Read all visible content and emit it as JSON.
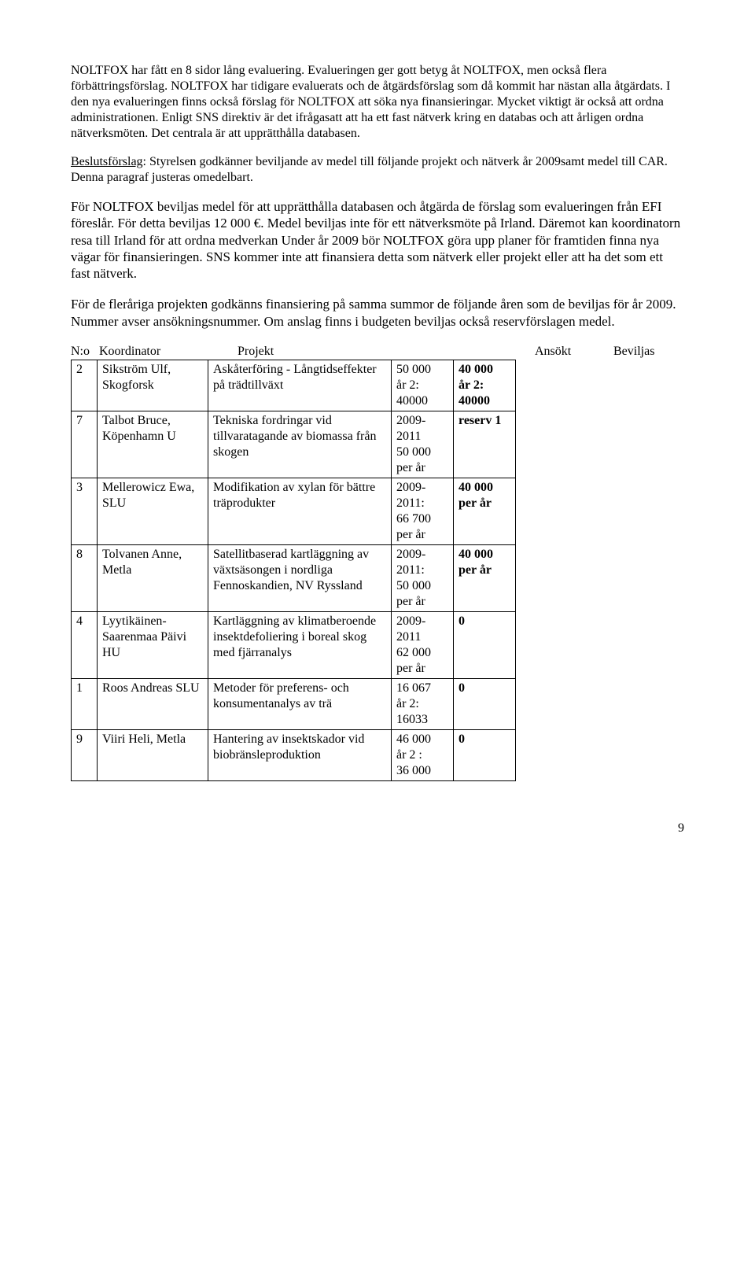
{
  "para1": "NOLTFOX har fått en 8 sidor lång evaluering. Evalueringen ger gott betyg åt NOLTFOX, men också flera förbättringsförslag. NOLTFOX har tidigare evaluerats och de åtgärdsförslag som då kommit har nästan alla åtgärdats. I den nya evalueringen finns också förslag för NOLTFOX att söka nya finansieringar. Mycket viktigt är också att ordna administrationen. Enligt SNS direktiv är det ifrågasatt att ha ett fast nätverk kring en databas och att årligen ordna nätverksmöten. Det centrala är att upprätthålla databasen.",
  "para2_label": "Beslutsförslag",
  "para2_rest": ": Styrelsen godkänner beviljande av medel till följande projekt och nätverk år 2009samt medel till CAR. Denna paragraf justeras omedelbart.",
  "para3": "För NOLTFOX beviljas medel för att upprätthålla databasen och åtgärda de förslag som evalueringen från EFI föreslår. För detta beviljas 12 000 €. Medel beviljas inte för ett nätverksmöte på Irland. Däremot kan koordinatorn resa till Irland för att ordna medverkan Under år 2009 bör NOLTFOX göra upp planer för framtiden finna nya vägar för finansieringen. SNS kommer inte att finansiera detta som nätverk eller projekt eller att ha det som ett fast nätverk.",
  "para4": "För de fleråriga projekten godkänns finansiering på samma summor de följande åren som de beviljas för år 2009. Nummer avser ansökningsnummer. Om anslag finns i budgeten beviljas också reservförslagen medel.",
  "headers": {
    "num": "N:o",
    "coord": "Koordinator",
    "proj": "Projekt",
    "ansokt": "Ansökt",
    "bev": "Beviljas"
  },
  "rows": [
    {
      "num": "2",
      "coord": "Sikström Ulf, Skogforsk",
      "proj": "Askåterföring - Långtidseffekter på trädtillväxt",
      "ansokt": "50 000\når 2:\n40000",
      "bev_bold": "40 000\når 2:\n40000"
    },
    {
      "num": "7",
      "coord": "Talbot Bruce, Köpenhamn U",
      "proj": "Tekniska fordringar vid tillvaratagande av biomassa från skogen",
      "ansokt": "2009-\n2011\n50 000\nper år",
      "bev_bold": "reserv 1"
    },
    {
      "num": "3",
      "coord": "Mellerowicz Ewa, SLU",
      "proj": "Modifikation av xylan för bättre träprodukter",
      "ansokt": "2009-\n2011:\n66 700\nper år",
      "bev_bold": "40 000\nper år"
    },
    {
      "num": "8",
      "coord": "Tolvanen Anne, Metla",
      "proj": "Satellitbaserad kartläggning av växtsäsongen i nordliga Fennoskandien, NV Ryssland",
      "ansokt": "2009-\n2011:\n50 000\nper år",
      "bev_bold": "40 000\nper år"
    },
    {
      "num": "4",
      "coord": "Lyytikäinen-Saarenmaa Päivi HU",
      "proj": "Kartläggning av klimatberoende insektdefoliering i boreal skog med fjärranalys",
      "ansokt": "2009-\n2011\n62 000\nper år",
      "bev_bold": "0"
    },
    {
      "num": "1",
      "coord": "Roos Andreas SLU",
      "proj": "Metoder för preferens- och konsumentanalys av trä",
      "ansokt": "16 067\når 2:\n16033",
      "bev_bold": "0"
    },
    {
      "num": "9",
      "coord": "Viiri Heli, Metla",
      "proj": "Hantering av insektskador vid biobränsleproduktion",
      "ansokt": "46 000\når 2 :\n36 000",
      "bev_bold": "0"
    }
  ],
  "page_number": "9"
}
